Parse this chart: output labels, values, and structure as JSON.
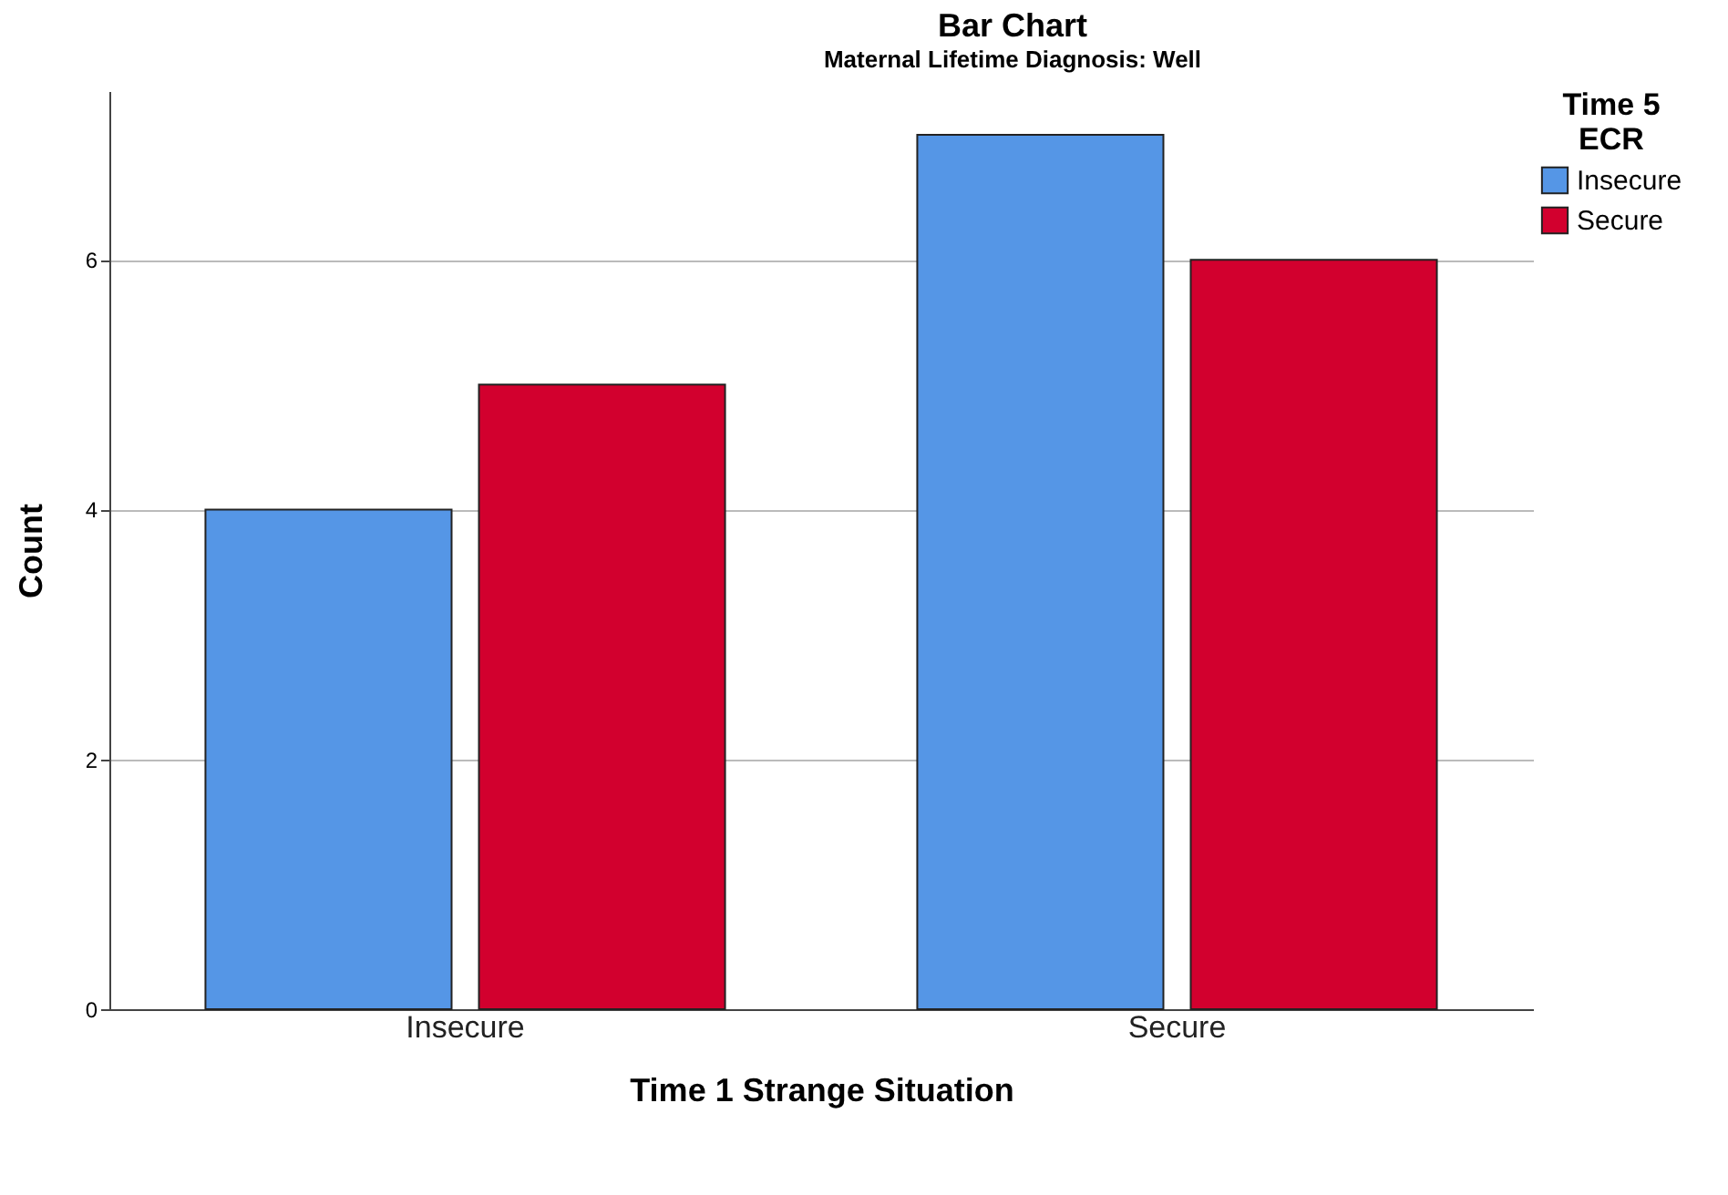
{
  "chart_data": {
    "type": "bar",
    "title": "Bar Chart",
    "subtitle": "Maternal Lifetime Diagnosis: Well",
    "xlabel": "Time 1 Strange Situation",
    "ylabel": "Count",
    "legend_title": "Time 5\nECR",
    "categories": [
      "Insecure",
      "Secure"
    ],
    "series": [
      {
        "name": "Insecure",
        "color": "#5596e6",
        "values": [
          4,
          7
        ]
      },
      {
        "name": "Secure",
        "color": "#d2002e",
        "values": [
          5,
          6
        ]
      }
    ],
    "ylim": [
      0,
      7.35
    ],
    "yticks": [
      0,
      2,
      4,
      6
    ],
    "grid": "y",
    "legend": "top right"
  }
}
